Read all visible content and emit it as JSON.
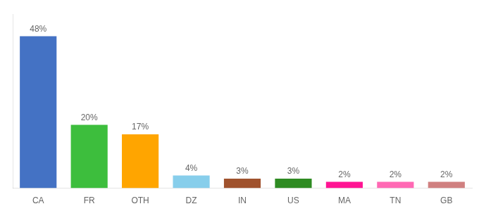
{
  "chart_data": {
    "type": "bar",
    "categories": [
      "CA",
      "FR",
      "OTH",
      "DZ",
      "IN",
      "US",
      "MA",
      "TN",
      "GB"
    ],
    "values": [
      48,
      20,
      17,
      4,
      3,
      3,
      2,
      2,
      2
    ],
    "value_labels": [
      "48%",
      "20%",
      "17%",
      "4%",
      "3%",
      "3%",
      "2%",
      "2%",
      "2%"
    ],
    "colors": [
      "#4472C4",
      "#3DBE3D",
      "#FFA500",
      "#87CEEB",
      "#A0522D",
      "#2E8B22",
      "#FF1493",
      "#FF69B4",
      "#D08080"
    ],
    "ylim": [
      0,
      55
    ],
    "data_labels": true,
    "tick_labels": "x",
    "grid": false
  }
}
